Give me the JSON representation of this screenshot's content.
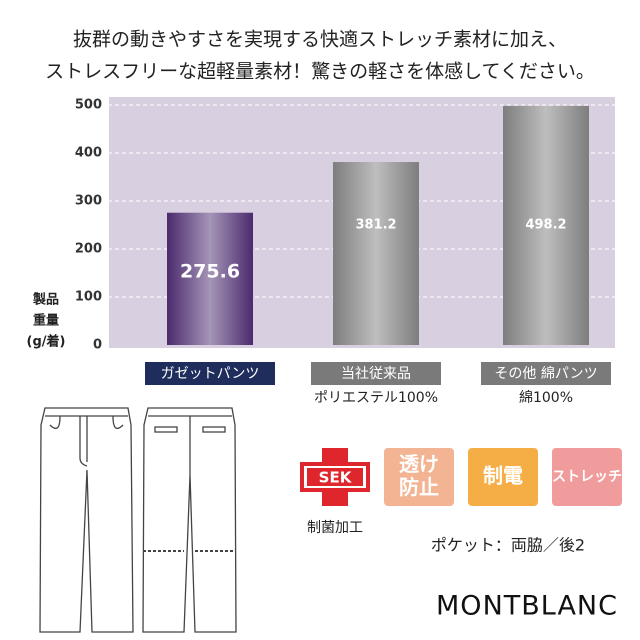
{
  "chart_data": {
    "type": "bar",
    "title": [
      "抜群の動きやすさを実現する快適ストレッチ素材に加え、",
      "ストレスフリーな超軽量素材！驚きの軽さを体感してください。"
    ],
    "ylabel": [
      "製品",
      "重量",
      "(g/着)"
    ],
    "categories": [
      "ガゼットパンツ",
      "当社従来品",
      "その他 綿パンツ"
    ],
    "category_notes": [
      null,
      "ポリエステル100%",
      "綿100%"
    ],
    "values": [
      275.6,
      381.2,
      498.2
    ],
    "colors": [
      "#4b2a6e",
      "#7d7d7d",
      "#7d7d7d"
    ],
    "label_colors": [
      "#1f2d5c",
      "#7a7a7a",
      "#7a7a7a"
    ],
    "ylim": [
      0,
      500
    ],
    "yticks": [
      0,
      100,
      200,
      300,
      400,
      500
    ],
    "grid": true
  },
  "features": {
    "sek": "SEK",
    "sek_caption": "制菌加工",
    "badges": [
      {
        "lines": [
          "透け",
          "防止"
        ],
        "color": "#f2b493"
      },
      {
        "lines": [
          "制電"
        ],
        "color": "#f5ae45"
      },
      {
        "lines": [
          "ストレッチ"
        ],
        "color": "#f09c9c"
      }
    ],
    "pocket": "ポケット：両脇／後2",
    "brand": "MONTBLANC"
  }
}
